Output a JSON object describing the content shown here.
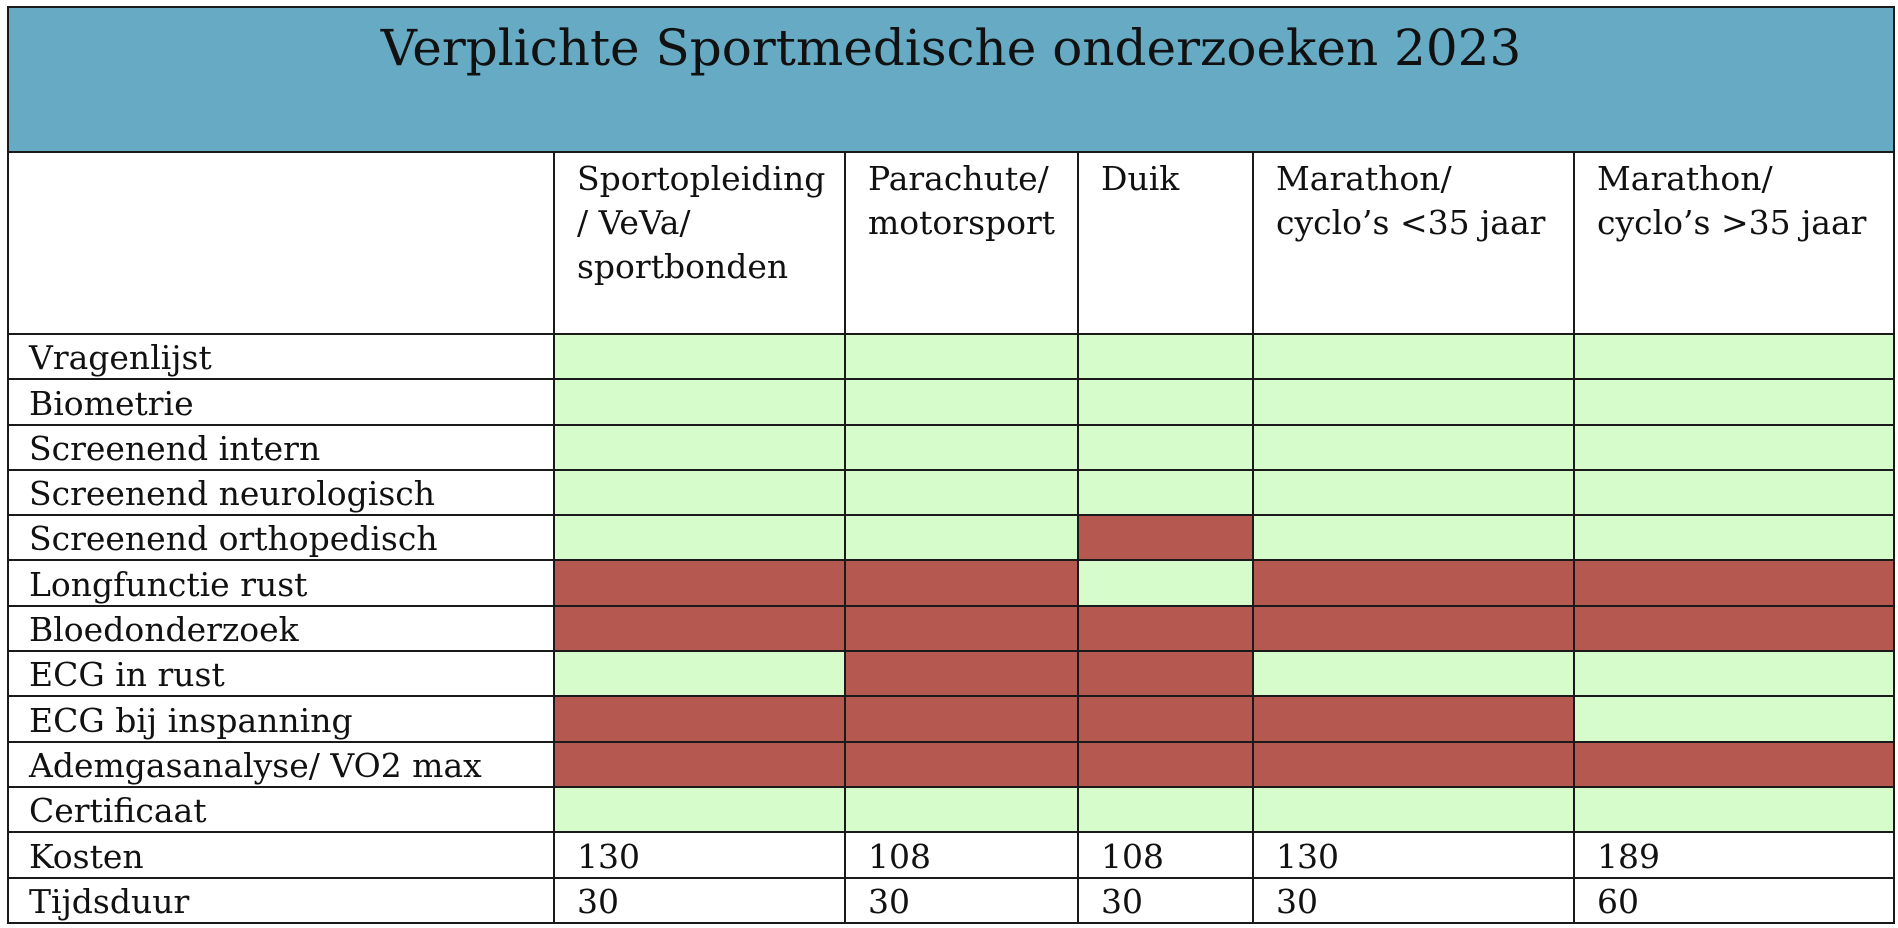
{
  "title": "Verplichte Sportmedische onderzoeken 2023",
  "colors": {
    "header_background": "#66aac4",
    "included": "#d6fccc",
    "not_included": "#b55850"
  },
  "columns": [
    "Sportopleiding / VeVa/ sportbonden",
    "Parachute/ motorsport",
    "Duik",
    "Marathon/ cyclo’s <35 jaar",
    "Marathon/ cyclo’s >35 jaar"
  ],
  "rows": [
    {
      "label": "Vragenlijst",
      "cells": [
        "included",
        "included",
        "included",
        "included",
        "included"
      ]
    },
    {
      "label": "Biometrie",
      "cells": [
        "included",
        "included",
        "included",
        "included",
        "included"
      ]
    },
    {
      "label": "Screenend intern",
      "cells": [
        "included",
        "included",
        "included",
        "included",
        "included"
      ]
    },
    {
      "label": "Screenend neurologisch",
      "cells": [
        "included",
        "included",
        "included",
        "included",
        "included"
      ]
    },
    {
      "label": "Screenend orthopedisch",
      "cells": [
        "included",
        "included",
        "not_included",
        "included",
        "included"
      ]
    },
    {
      "label": "Longfunctie rust",
      "cells": [
        "not_included",
        "not_included",
        "included",
        "not_included",
        "not_included"
      ]
    },
    {
      "label": "Bloedonderzoek",
      "cells": [
        "not_included",
        "not_included",
        "not_included",
        "not_included",
        "not_included"
      ]
    },
    {
      "label": "ECG in rust",
      "cells": [
        "included",
        "not_included",
        "not_included",
        "included",
        "included"
      ]
    },
    {
      "label": "ECG bij inspanning",
      "cells": [
        "not_included",
        "not_included",
        "not_included",
        "not_included",
        "included"
      ]
    },
    {
      "label": "Ademgasanalyse/ VO2 max",
      "cells": [
        "not_included",
        "not_included",
        "not_included",
        "not_included",
        "not_included"
      ]
    },
    {
      "label": "Certificaat",
      "cells": [
        "included",
        "included",
        "included",
        "included",
        "included"
      ]
    }
  ],
  "value_rows": [
    {
      "label": "Kosten",
      "values": [
        "130",
        "108",
        "108",
        "130",
        "189"
      ]
    },
    {
      "label": "Tijdsduur",
      "values": [
        "30",
        "30",
        "30",
        "30",
        "60"
      ]
    }
  ]
}
